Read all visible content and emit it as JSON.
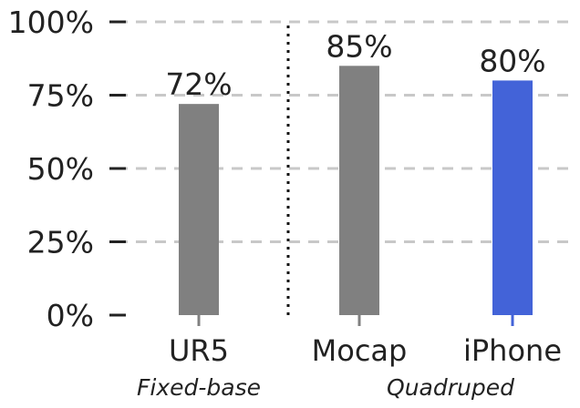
{
  "chart_data": {
    "type": "bar",
    "categories": [
      "UR5",
      "Mocap",
      "iPhone"
    ],
    "values": [
      72,
      85,
      80
    ],
    "data_labels": [
      "72%",
      "85%",
      "80%"
    ],
    "bar_colors": [
      "#808080",
      "#808080",
      "#4363D8"
    ],
    "y_ticks": [
      0,
      25,
      50,
      75,
      100
    ],
    "y_tick_labels": [
      "0%",
      "25%",
      "50%",
      "75%",
      "100%"
    ],
    "ylim": [
      0,
      100
    ],
    "grid": "horizontal dashed",
    "groups": [
      {
        "label": "Fixed-base",
        "categories": [
          "UR5"
        ]
      },
      {
        "label": "Quadruped",
        "categories": [
          "Mocap",
          "iPhone"
        ]
      }
    ],
    "group_separator": "dotted vertical line between UR5 and Mocap"
  }
}
